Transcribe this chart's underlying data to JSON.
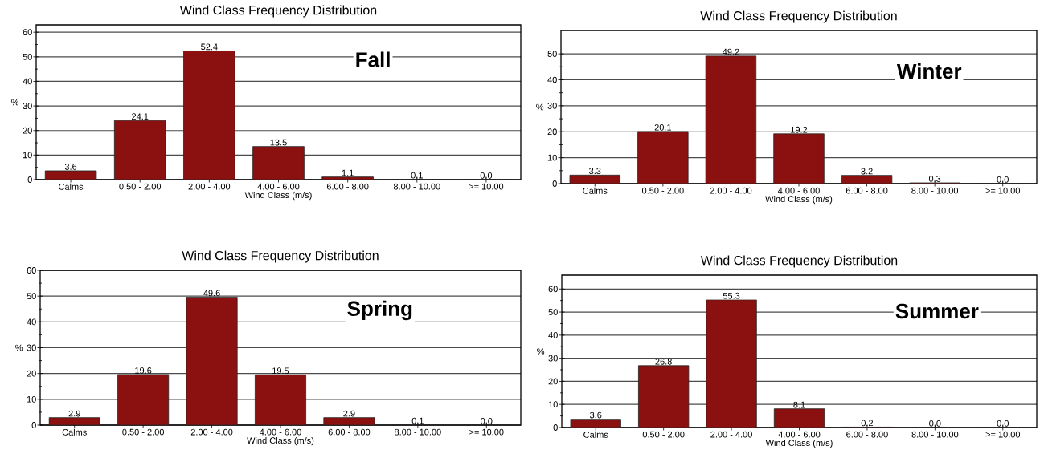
{
  "chart_data": [
    {
      "type": "bar",
      "title": "Wind Class Frequency Distribution",
      "xlabel": "Wind Class (m/s)",
      "ylabel": "%",
      "annotations": [
        "Fall"
      ],
      "categories": [
        "Calms",
        "0.50 - 2.00",
        "2.00 - 4.00",
        "4.00 - 6.00",
        "6.00 - 8.00",
        "8.00 - 10.00",
        ">= 10.00"
      ],
      "values": [
        3.6,
        24.1,
        52.4,
        13.5,
        1.1,
        0.1,
        0.0
      ],
      "value_labels": [
        "3.6",
        "24.1",
        "52.4",
        "13.5",
        "1.1",
        "0.1",
        "0.0"
      ],
      "color": "#8b1010",
      "ylim": [
        0,
        63
      ],
      "yticks": [
        0,
        10,
        20,
        30,
        40,
        50,
        60
      ],
      "grid": "y"
    },
    {
      "type": "bar",
      "title": "Wind Class Frequency Distribution",
      "xlabel": "Wind Class (m/s)",
      "ylabel": "%",
      "annotations": [
        "Winter"
      ],
      "categories": [
        "Calms",
        "0.50 - 2.00",
        "2.00 - 4.00",
        "4.00 - 6.00",
        "6.00 - 8.00",
        "8.00 - 10.00",
        ">= 10.00"
      ],
      "values": [
        3.3,
        20.1,
        49.2,
        19.2,
        3.2,
        0.3,
        0.0
      ],
      "value_labels": [
        "3.3",
        "20.1",
        "49.2",
        "19.2",
        "3.2",
        "0.3",
        "0.0"
      ],
      "color": "#8b1010",
      "ylim": [
        0,
        59
      ],
      "yticks": [
        0,
        10,
        20,
        30,
        40,
        50
      ],
      "grid": "y"
    },
    {
      "type": "bar",
      "title": "Wind Class Frequency Distribution",
      "xlabel": "Wind Class (m/s)",
      "ylabel": "%",
      "annotations": [
        "Spring"
      ],
      "categories": [
        "Calms",
        "0.50 - 2.00",
        "2.00 - 4.00",
        "4.00 - 6.00",
        "6.00 - 8.00",
        "8.00 - 10.00",
        ">= 10.00"
      ],
      "values": [
        2.9,
        19.6,
        49.6,
        19.5,
        2.9,
        0.1,
        0.0
      ],
      "value_labels": [
        "2.9",
        "19.6",
        "49.6",
        "19.5",
        "2.9",
        "0.1",
        "0.0"
      ],
      "color": "#8b1010",
      "ylim": [
        0,
        60
      ],
      "yticks": [
        0,
        10,
        20,
        30,
        40,
        50,
        60
      ],
      "grid": "y"
    },
    {
      "type": "bar",
      "title": "Wind Class Frequency Distribution",
      "xlabel": "Wind Class (m/s)",
      "ylabel": "%",
      "annotations": [
        "Summer"
      ],
      "categories": [
        "Calms",
        "0.50 - 2.00",
        "2.00 - 4.00",
        "4.00 - 6.00",
        "6.00 - 8.00",
        "8.00 - 10.00",
        ">= 10.00"
      ],
      "values": [
        3.6,
        26.8,
        55.3,
        8.1,
        0.2,
        0.0,
        0.0
      ],
      "value_labels": [
        "3.6",
        "26.8",
        "55.3",
        "8.1",
        "0.2",
        "0.0",
        "0.0"
      ],
      "color": "#8b1010",
      "ylim": [
        0,
        66
      ],
      "yticks": [
        0,
        10,
        20,
        30,
        40,
        50,
        60
      ],
      "grid": "y"
    }
  ]
}
